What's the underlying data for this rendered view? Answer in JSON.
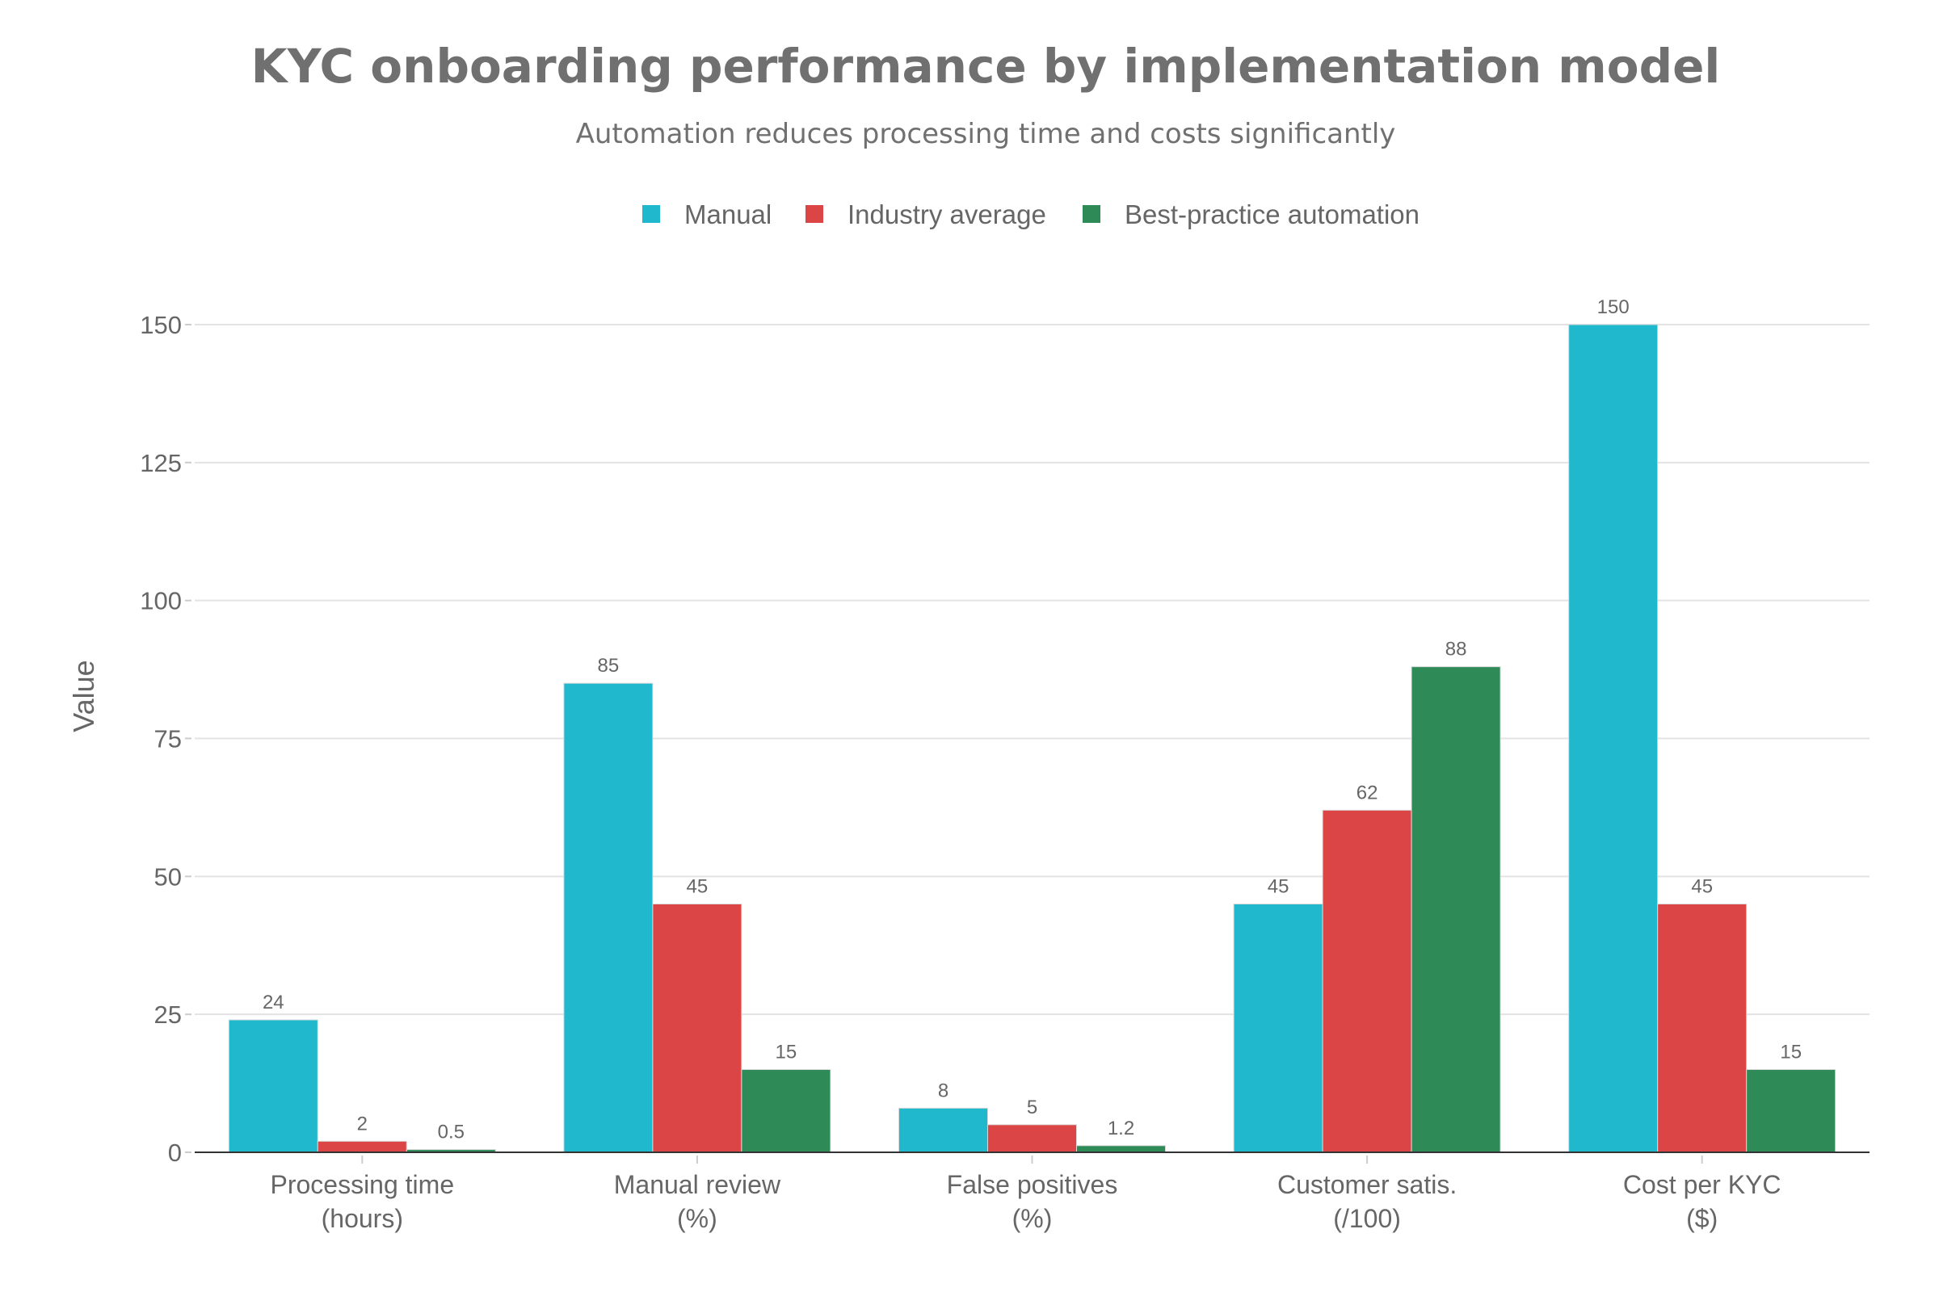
{
  "chart_data": {
    "type": "bar",
    "title": "KYC onboarding performance by implementation model",
    "subtitle": "Automation reduces processing time and costs significantly",
    "xlabel": "",
    "ylabel": "Value",
    "ylim": [
      0,
      150
    ],
    "yticks": [
      0,
      25,
      50,
      75,
      100,
      125,
      150
    ],
    "grid": true,
    "legend_position": "top-center",
    "categories": [
      [
        "Processing time",
        "(hours)"
      ],
      [
        "Manual review",
        "(%)"
      ],
      [
        "False positives",
        "(%)"
      ],
      [
        "Customer satis.",
        "(/100)"
      ],
      [
        "Cost per KYC",
        "($)"
      ]
    ],
    "series": [
      {
        "name": "Manual",
        "color": "#1FB8CD",
        "values": [
          24,
          85,
          8,
          45,
          150
        ]
      },
      {
        "name": "Industry average",
        "color": "#DB4545",
        "values": [
          2,
          45,
          5,
          62,
          45
        ]
      },
      {
        "name": "Best-practice automation",
        "color": "#2E8B57",
        "values": [
          0.5,
          15,
          1.2,
          88,
          15
        ]
      }
    ]
  }
}
